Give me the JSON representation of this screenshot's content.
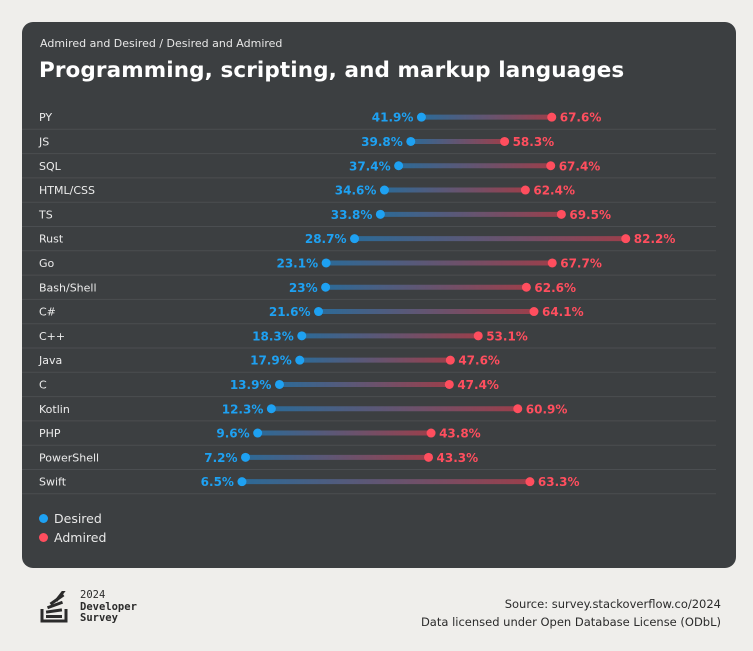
{
  "header": {
    "subtitle": "Admired and Desired / Desired and Admired",
    "title": "Programming, scripting, and markup languages"
  },
  "colors": {
    "desired": "#1ea1f2",
    "admired": "#ff4e5e",
    "card_background": "#3c3f41",
    "page_background": "#efeeeb"
  },
  "legend": {
    "desired_label": "Desired",
    "admired_label": "Admired",
    "placement": "bottom-left"
  },
  "chart_data": {
    "type": "dumbbell",
    "categories": [
      "PY",
      "JS",
      "SQL",
      "HTML/CSS",
      "TS",
      "Rust",
      "Go",
      "Bash/Shell",
      "C#",
      "C++",
      "Java",
      "C",
      "Kotlin",
      "PHP",
      "PowerShell",
      "Swift"
    ],
    "series": [
      {
        "name": "Desired",
        "values": [
          41.9,
          39.8,
          37.4,
          34.6,
          33.8,
          28.7,
          23.1,
          23,
          21.6,
          18.3,
          17.9,
          13.9,
          12.3,
          9.6,
          7.2,
          6.5
        ],
        "labels": [
          "41.9%",
          "39.8%",
          "37.4%",
          "34.6%",
          "33.8%",
          "28.7%",
          "23.1%",
          "23%",
          "21.6%",
          "18.3%",
          "17.9%",
          "13.9%",
          "12.3%",
          "9.6%",
          "7.2%",
          "6.5%"
        ]
      },
      {
        "name": "Admired",
        "values": [
          67.6,
          58.3,
          67.4,
          62.4,
          69.5,
          82.2,
          67.7,
          62.6,
          64.1,
          53.1,
          47.6,
          47.4,
          60.9,
          43.8,
          43.3,
          63.3
        ],
        "labels": [
          "67.6%",
          "58.3%",
          "67.4%",
          "62.4%",
          "69.5%",
          "82.2%",
          "67.7%",
          "62.6%",
          "64.1%",
          "53.1%",
          "47.6%",
          "47.4%",
          "60.9%",
          "43.8%",
          "43.3%",
          "63.3%"
        ]
      }
    ],
    "grid": true
  },
  "footer": {
    "logo_year": "2024",
    "logo_line1": "Developer",
    "logo_line2": "Survey",
    "source": "Source: survey.stackoverflow.co/2024",
    "license": "Data licensed under Open Database License (ODbL)"
  }
}
